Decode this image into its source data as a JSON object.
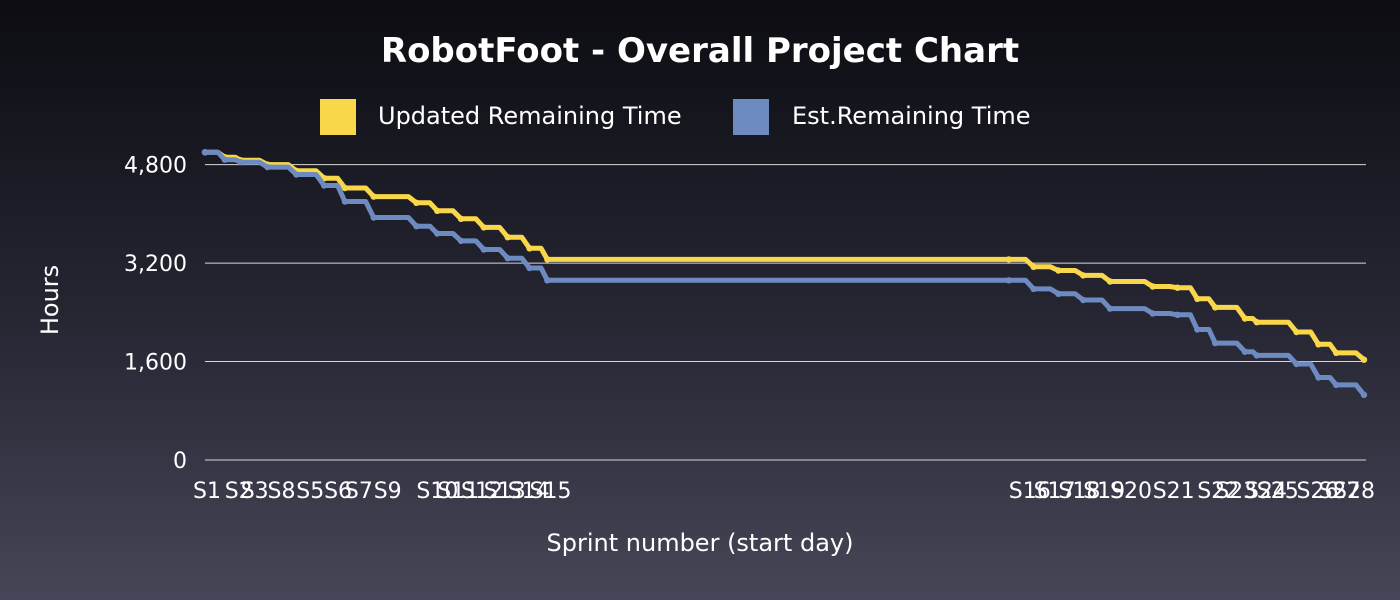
{
  "chart_data": {
    "type": "line",
    "title": "RobotFoot - Overall Project Chart",
    "xlabel": "Sprint number (start day)",
    "ylabel": "Hours",
    "ylim": [
      0,
      5200
    ],
    "yticks": [
      0,
      1600,
      3200,
      4800
    ],
    "ytick_labels": [
      "0",
      "1,600",
      "3,200",
      "4,800"
    ],
    "grid": true,
    "legend_position": "top-center",
    "sprint_labels": [
      {
        "label": "S1",
        "day": 0
      },
      {
        "label": "S2",
        "day": 20
      },
      {
        "label": "S3",
        "day": 36
      },
      {
        "label": "S8",
        "day": 63
      },
      {
        "label": "S5",
        "day": 92
      },
      {
        "label": "S6",
        "day": 120
      },
      {
        "label": "S7",
        "day": 141
      },
      {
        "label": "S9",
        "day": 170
      },
      {
        "label": "S10",
        "day": 213
      },
      {
        "label": "S11",
        "day": 234
      },
      {
        "label": "S12",
        "day": 258
      },
      {
        "label": "S13",
        "day": 281
      },
      {
        "label": "S14",
        "day": 305
      },
      {
        "label": "S15",
        "day": 327
      },
      {
        "label": "S16",
        "day": 810
      },
      {
        "label": "S17",
        "day": 835
      },
      {
        "label": "S18",
        "day": 860
      },
      {
        "label": "S19",
        "day": 885
      },
      {
        "label": "S20",
        "day": 912
      },
      {
        "label": "S21",
        "day": 955
      },
      {
        "label": "S22",
        "day": 1000
      },
      {
        "label": "S23",
        "day": 1018
      },
      {
        "label": "S24",
        "day": 1048
      },
      {
        "label": "S25",
        "day": 1060
      },
      {
        "label": "S26",
        "day": 1100
      },
      {
        "label": "S27",
        "day": 1122
      },
      {
        "label": "S28",
        "day": 1140
      }
    ],
    "xlim": [
      0,
      1170
    ],
    "series": [
      {
        "name": "Updated Remaining Time",
        "color": "#f9d74a",
        "points": [
          [
            0,
            5000
          ],
          [
            20,
            4920
          ],
          [
            36,
            4870
          ],
          [
            63,
            4800
          ],
          [
            92,
            4700
          ],
          [
            120,
            4580
          ],
          [
            141,
            4420
          ],
          [
            170,
            4280
          ],
          [
            213,
            4180
          ],
          [
            234,
            4050
          ],
          [
            258,
            3920
          ],
          [
            281,
            3780
          ],
          [
            305,
            3620
          ],
          [
            327,
            3440
          ],
          [
            345,
            3260
          ],
          [
            810,
            3260
          ],
          [
            835,
            3140
          ],
          [
            860,
            3080
          ],
          [
            885,
            3000
          ],
          [
            912,
            2900
          ],
          [
            955,
            2820
          ],
          [
            980,
            2800
          ],
          [
            1000,
            2620
          ],
          [
            1018,
            2480
          ],
          [
            1048,
            2300
          ],
          [
            1060,
            2240
          ],
          [
            1100,
            2080
          ],
          [
            1122,
            1880
          ],
          [
            1140,
            1740
          ],
          [
            1168,
            1630
          ]
        ]
      },
      {
        "name": "Est.Remaining Time",
        "color": "#6d8bc0",
        "points": [
          [
            0,
            5000
          ],
          [
            20,
            4880
          ],
          [
            36,
            4840
          ],
          [
            63,
            4760
          ],
          [
            92,
            4640
          ],
          [
            120,
            4460
          ],
          [
            141,
            4200
          ],
          [
            170,
            3940
          ],
          [
            213,
            3800
          ],
          [
            234,
            3680
          ],
          [
            258,
            3560
          ],
          [
            281,
            3420
          ],
          [
            305,
            3280
          ],
          [
            327,
            3120
          ],
          [
            345,
            2920
          ],
          [
            810,
            2920
          ],
          [
            835,
            2780
          ],
          [
            860,
            2700
          ],
          [
            885,
            2600
          ],
          [
            912,
            2460
          ],
          [
            955,
            2380
          ],
          [
            980,
            2360
          ],
          [
            1000,
            2120
          ],
          [
            1018,
            1900
          ],
          [
            1048,
            1760
          ],
          [
            1060,
            1700
          ],
          [
            1100,
            1560
          ],
          [
            1122,
            1340
          ],
          [
            1140,
            1220
          ],
          [
            1168,
            1060
          ]
        ]
      }
    ]
  }
}
